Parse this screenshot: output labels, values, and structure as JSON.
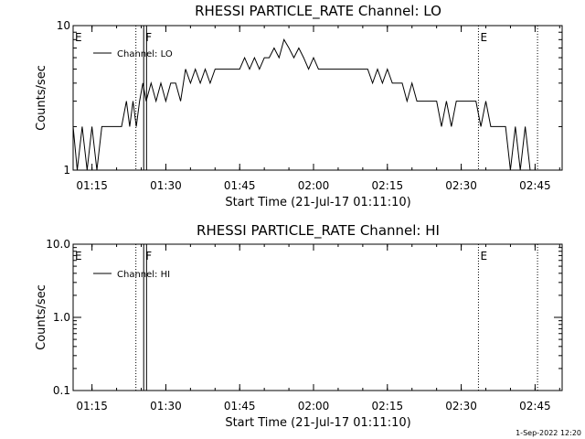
{
  "footer": {
    "timestamp": "1-Sep-2022 12:20"
  },
  "chart_data": [
    {
      "type": "line",
      "title": "RHESSI PARTICLE_RATE Channel: LO",
      "xlabel": "Start Time (21-Jul-17 01:11:10)",
      "ylabel": "Counts/sec",
      "yscale": "log",
      "xlim": [
        "01:11:10",
        "02:50:30"
      ],
      "ylim": [
        1,
        10
      ],
      "xticks": [
        "01:15",
        "01:30",
        "01:45",
        "02:00",
        "02:15",
        "02:30",
        "02:45"
      ],
      "yticks": [
        {
          "value": 1,
          "label": "1"
        },
        {
          "value": 10,
          "label": "10"
        }
      ],
      "legend": {
        "position": "top-left"
      },
      "series": [
        {
          "name": "Channel: LO",
          "color": "#000000",
          "x": [
            "01:11:10",
            "01:12:00",
            "01:13:00",
            "01:14:00",
            "01:15:00",
            "01:16:00",
            "01:17:00",
            "01:18:00",
            "01:19:00",
            "01:20:00",
            "01:21:00",
            "01:22:00",
            "01:22:40",
            "01:23:20",
            "01:24:00",
            "01:24:40",
            "01:25:20",
            "01:26:00",
            "01:27:00",
            "01:28:00",
            "01:29:00",
            "01:30:00",
            "01:31:00",
            "01:32:00",
            "01:33:00",
            "01:34:00",
            "01:35:00",
            "01:36:00",
            "01:37:00",
            "01:38:00",
            "01:39:00",
            "01:40:00",
            "01:41:00",
            "01:42:00",
            "01:43:00",
            "01:44:00",
            "01:45:00",
            "01:46:00",
            "01:47:00",
            "01:48:00",
            "01:49:00",
            "01:50:00",
            "01:51:00",
            "01:52:00",
            "01:53:00",
            "01:54:00",
            "01:55:00",
            "01:56:00",
            "01:57:00",
            "01:58:00",
            "01:59:00",
            "02:00:00",
            "02:01:00",
            "02:02:00",
            "02:03:00",
            "02:04:00",
            "02:05:00",
            "02:06:00",
            "02:07:00",
            "02:08:00",
            "02:09:00",
            "02:10:00",
            "02:11:00",
            "02:12:00",
            "02:13:00",
            "02:14:00",
            "02:15:00",
            "02:16:00",
            "02:17:00",
            "02:18:00",
            "02:19:00",
            "02:20:00",
            "02:21:00",
            "02:22:00",
            "02:23:00",
            "02:24:00",
            "02:25:00",
            "02:26:00",
            "02:27:00",
            "02:28:00",
            "02:29:00",
            "02:30:00",
            "02:31:00",
            "02:32:00",
            "02:33:00",
            "02:34:00",
            "02:35:00",
            "02:36:00",
            "02:37:00",
            "02:38:00",
            "02:39:00",
            "02:40:00",
            "02:41:00",
            "02:42:00",
            "02:43:00",
            "02:44:00",
            "02:45:00",
            "02:46:00",
            "02:47:00",
            "02:48:00",
            "02:49:00",
            "02:50:00"
          ],
          "y": [
            2,
            1,
            2,
            1,
            2,
            1,
            2,
            2,
            2,
            2,
            2,
            3,
            2,
            3,
            2,
            3,
            4,
            3,
            4,
            3,
            4,
            3,
            4,
            4,
            3,
            5,
            4,
            5,
            4,
            5,
            4,
            5,
            5,
            5,
            5,
            5,
            5,
            6,
            5,
            6,
            5,
            6,
            6,
            7,
            6,
            8,
            7,
            6,
            7,
            6,
            5,
            6,
            5,
            5,
            5,
            5,
            5,
            5,
            5,
            5,
            5,
            5,
            5,
            4,
            5,
            4,
            5,
            4,
            4,
            4,
            3,
            4,
            3,
            3,
            3,
            3,
            3,
            2,
            3,
            2,
            3,
            3,
            3,
            3,
            3,
            2,
            3,
            2,
            2,
            2,
            2,
            1,
            2,
            1,
            2,
            1,
            1,
            1,
            1,
            1,
            1,
            1
          ]
        }
      ],
      "markers": [
        {
          "label": "E",
          "time": "01:11:10",
          "style": "solid"
        },
        {
          "label": "",
          "time": "01:23:55",
          "style": "dotted"
        },
        {
          "label": "F",
          "time": "01:25:30",
          "style": "solid"
        },
        {
          "label": "",
          "time": "01:26:05",
          "style": "solid"
        },
        {
          "label": "E",
          "time": "02:33:30",
          "style": "dotted"
        },
        {
          "label": "",
          "time": "02:45:30",
          "style": "dotted"
        }
      ]
    },
    {
      "type": "line",
      "title": "RHESSI PARTICLE_RATE Channel: HI",
      "xlabel": "Start Time (21-Jul-17 01:11:10)",
      "ylabel": "Counts/sec",
      "yscale": "log",
      "xlim": [
        "01:11:10",
        "02:50:30"
      ],
      "ylim": [
        0.1,
        10
      ],
      "xticks": [
        "01:15",
        "01:30",
        "01:45",
        "02:00",
        "02:15",
        "02:30",
        "02:45"
      ],
      "yticks": [
        {
          "value": 0.1,
          "label": "0.1"
        },
        {
          "value": 1,
          "label": "1.0"
        },
        {
          "value": 10,
          "label": "10.0"
        }
      ],
      "legend": {
        "position": "top-left"
      },
      "series": [
        {
          "name": "Channel: HI",
          "color": "#000000",
          "x": [],
          "y": []
        }
      ],
      "markers": [
        {
          "label": "E",
          "time": "01:11:10",
          "style": "solid"
        },
        {
          "label": "",
          "time": "01:23:55",
          "style": "dotted"
        },
        {
          "label": "F",
          "time": "01:25:30",
          "style": "solid"
        },
        {
          "label": "",
          "time": "01:26:05",
          "style": "solid"
        },
        {
          "label": "E",
          "time": "02:33:30",
          "style": "dotted"
        },
        {
          "label": "",
          "time": "02:45:30",
          "style": "dotted"
        }
      ]
    }
  ]
}
